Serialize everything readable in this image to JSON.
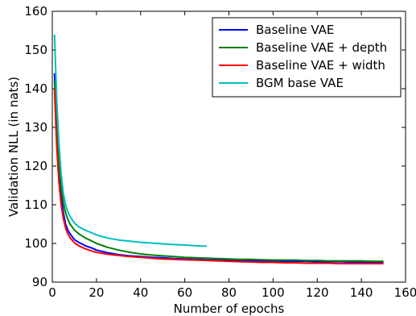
{
  "chart_data": {
    "type": "line",
    "title": "",
    "xlabel": "Number of epochs",
    "ylabel": "Validation NLL (in nats)",
    "xlim": [
      0,
      160
    ],
    "ylim": [
      90,
      160
    ],
    "xticks": [
      "0",
      "20",
      "40",
      "60",
      "80",
      "100",
      "120",
      "140",
      "160"
    ],
    "yticks": [
      "90",
      "100",
      "110",
      "120",
      "130",
      "140",
      "150",
      "160"
    ],
    "grid": false,
    "legend_position": "top-right",
    "series": [
      {
        "name": "Baseline VAE",
        "color": "#0000ff",
        "x": [
          1,
          2,
          3,
          4,
          5,
          6,
          7,
          8,
          10,
          12,
          15,
          18,
          20,
          25,
          30,
          35,
          40,
          45,
          50,
          55,
          60,
          65,
          70,
          75,
          80,
          85,
          90,
          95,
          100,
          105,
          110,
          115,
          120,
          125,
          130,
          135,
          140,
          145,
          150
        ],
        "y": [
          144,
          130,
          119,
          112,
          108,
          105,
          103.5,
          102.5,
          101,
          100.3,
          99.4,
          98.8,
          98.3,
          97.6,
          97.1,
          96.8,
          96.6,
          96.4,
          96.3,
          96.1,
          96.0,
          95.9,
          95.8,
          95.7,
          95.7,
          95.6,
          95.6,
          95.5,
          95.5,
          95.4,
          95.4,
          95.4,
          95.3,
          95.3,
          95.3,
          95.2,
          95.2,
          95.2,
          95.2
        ]
      },
      {
        "name": "Baseline VAE + depth",
        "color": "#008000",
        "x": [
          1,
          2,
          3,
          4,
          5,
          6,
          7,
          8,
          10,
          12,
          15,
          18,
          20,
          25,
          30,
          35,
          40,
          45,
          50,
          55,
          60,
          65,
          70,
          75,
          80,
          85,
          90,
          95,
          100,
          105,
          110,
          115,
          120,
          125,
          130,
          135,
          140,
          145,
          150
        ],
        "y": [
          142,
          132,
          122,
          115,
          110.5,
          108,
          106.3,
          105,
          103.5,
          102.5,
          101.4,
          100.6,
          100.0,
          99.0,
          98.3,
          97.7,
          97.3,
          97.0,
          96.8,
          96.6,
          96.4,
          96.3,
          96.2,
          96.1,
          96.0,
          95.9,
          95.9,
          95.8,
          95.7,
          95.7,
          95.7,
          95.6,
          95.6,
          95.5,
          95.5,
          95.5,
          95.5,
          95.4,
          95.4
        ]
      },
      {
        "name": "Baseline VAE + width",
        "color": "#ff0000",
        "x": [
          1,
          2,
          3,
          4,
          5,
          6,
          7,
          8,
          10,
          12,
          15,
          18,
          20,
          25,
          30,
          35,
          40,
          45,
          50,
          55,
          60,
          65,
          70,
          75,
          80,
          85,
          90,
          95,
          100,
          105,
          110,
          115,
          120,
          125,
          130,
          135,
          140,
          145,
          150
        ],
        "y": [
          140,
          125,
          116,
          110,
          106.5,
          104,
          102.5,
          101.5,
          100.2,
          99.4,
          98.6,
          98.0,
          97.7,
          97.2,
          96.9,
          96.6,
          96.4,
          96.2,
          96.0,
          95.9,
          95.8,
          95.7,
          95.6,
          95.5,
          95.4,
          95.3,
          95.2,
          95.1,
          95.1,
          95.0,
          95.0,
          94.9,
          94.9,
          94.9,
          94.8,
          94.8,
          94.8,
          94.8,
          94.8
        ]
      },
      {
        "name": "BGM base VAE",
        "color": "#00bfbf",
        "x": [
          1,
          2,
          3,
          4,
          5,
          6,
          7,
          8,
          10,
          12,
          15,
          18,
          20,
          25,
          30,
          35,
          40,
          45,
          50,
          55,
          60,
          65,
          70
        ],
        "y": [
          154,
          137,
          126,
          118,
          113,
          110,
          108.3,
          107,
          105.3,
          104.3,
          103.4,
          102.7,
          102.2,
          101.4,
          100.9,
          100.6,
          100.3,
          100.1,
          99.9,
          99.7,
          99.6,
          99.4,
          99.3
        ]
      }
    ]
  }
}
